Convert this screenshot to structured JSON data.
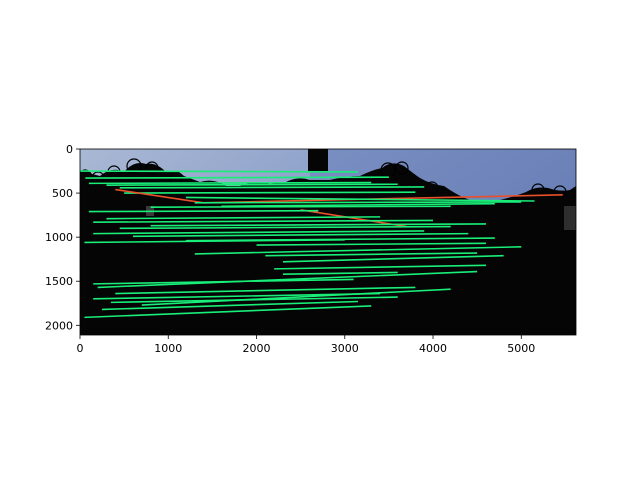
{
  "chart_data": {
    "type": "image",
    "title": "",
    "xlabel": "",
    "ylabel": "",
    "xlim": [
      0,
      5620
    ],
    "ylim": [
      2110,
      0
    ],
    "x_ticks": [
      {
        "value": 0,
        "label": "0"
      },
      {
        "value": 1000,
        "label": "1000"
      },
      {
        "value": 2000,
        "label": "2000"
      },
      {
        "value": 3000,
        "label": "3000"
      },
      {
        "value": 4000,
        "label": "4000"
      },
      {
        "value": 5000,
        "label": "5000"
      }
    ],
    "y_ticks": [
      {
        "value": 0,
        "label": "0"
      },
      {
        "value": 500,
        "label": "500"
      },
      {
        "value": 1000,
        "label": "1000"
      },
      {
        "value": 1500,
        "label": "1500"
      },
      {
        "value": 2000,
        "label": "2000"
      }
    ],
    "image_split_x": 2610,
    "colors": {
      "inlier": "#19ee78",
      "outlier": "#e8502a",
      "sky_left": "#9aaccc",
      "sky_right": "#6d82b8",
      "ground": "#050505"
    },
    "match_lines": [
      {
        "x1": 0,
        "y1": 250,
        "x2": 3150,
        "y2": 260,
        "status": "inlier"
      },
      {
        "x1": 60,
        "y1": 330,
        "x2": 3500,
        "y2": 320,
        "status": "inlier"
      },
      {
        "x1": 100,
        "y1": 390,
        "x2": 3300,
        "y2": 380,
        "status": "inlier"
      },
      {
        "x1": 300,
        "y1": 410,
        "x2": 3600,
        "y2": 400,
        "status": "inlier"
      },
      {
        "x1": 450,
        "y1": 440,
        "x2": 3900,
        "y2": 430,
        "status": "inlier"
      },
      {
        "x1": 500,
        "y1": 500,
        "x2": 3800,
        "y2": 490,
        "status": "inlier"
      },
      {
        "x1": 400,
        "y1": 460,
        "x2": 1400,
        "y2": 610,
        "status": "outlier"
      },
      {
        "x1": 1400,
        "y1": 610,
        "x2": 5470,
        "y2": 520,
        "status": "outlier"
      },
      {
        "x1": 1200,
        "y1": 550,
        "x2": 5150,
        "y2": 590,
        "status": "inlier"
      },
      {
        "x1": 1300,
        "y1": 610,
        "x2": 5000,
        "y2": 600,
        "status": "inlier"
      },
      {
        "x1": 1600,
        "y1": 650,
        "x2": 4700,
        "y2": 620,
        "status": "inlier"
      },
      {
        "x1": 800,
        "y1": 660,
        "x2": 4200,
        "y2": 650,
        "status": "inlier"
      },
      {
        "x1": 2500,
        "y1": 690,
        "x2": 3700,
        "y2": 880,
        "status": "outlier"
      },
      {
        "x1": 100,
        "y1": 710,
        "x2": 2700,
        "y2": 700,
        "status": "inlier"
      },
      {
        "x1": 300,
        "y1": 790,
        "x2": 3400,
        "y2": 770,
        "status": "inlier"
      },
      {
        "x1": 150,
        "y1": 830,
        "x2": 4000,
        "y2": 810,
        "status": "inlier"
      },
      {
        "x1": 800,
        "y1": 870,
        "x2": 4600,
        "y2": 850,
        "status": "inlier"
      },
      {
        "x1": 450,
        "y1": 900,
        "x2": 4200,
        "y2": 880,
        "status": "inlier"
      },
      {
        "x1": 150,
        "y1": 960,
        "x2": 3900,
        "y2": 930,
        "status": "inlier"
      },
      {
        "x1": 600,
        "y1": 990,
        "x2": 4400,
        "y2": 960,
        "status": "inlier"
      },
      {
        "x1": 50,
        "y1": 1060,
        "x2": 3000,
        "y2": 1030,
        "status": "inlier"
      },
      {
        "x1": 1200,
        "y1": 1040,
        "x2": 4700,
        "y2": 1010,
        "status": "inlier"
      },
      {
        "x1": 2000,
        "y1": 1090,
        "x2": 4600,
        "y2": 1070,
        "status": "inlier"
      },
      {
        "x1": 1300,
        "y1": 1190,
        "x2": 5000,
        "y2": 1110,
        "status": "inlier"
      },
      {
        "x1": 2100,
        "y1": 1210,
        "x2": 4500,
        "y2": 1180,
        "status": "inlier"
      },
      {
        "x1": 2300,
        "y1": 1280,
        "x2": 4800,
        "y2": 1210,
        "status": "inlier"
      },
      {
        "x1": 2200,
        "y1": 1360,
        "x2": 4600,
        "y2": 1320,
        "status": "inlier"
      },
      {
        "x1": 2300,
        "y1": 1420,
        "x2": 3600,
        "y2": 1400,
        "status": "inlier"
      },
      {
        "x1": 150,
        "y1": 1530,
        "x2": 3100,
        "y2": 1480,
        "status": "inlier"
      },
      {
        "x1": 200,
        "y1": 1570,
        "x2": 4500,
        "y2": 1390,
        "status": "inlier"
      },
      {
        "x1": 400,
        "y1": 1640,
        "x2": 3800,
        "y2": 1570,
        "status": "inlier"
      },
      {
        "x1": 150,
        "y1": 1700,
        "x2": 3400,
        "y2": 1640,
        "status": "inlier"
      },
      {
        "x1": 350,
        "y1": 1740,
        "x2": 3600,
        "y2": 1680,
        "status": "inlier"
      },
      {
        "x1": 700,
        "y1": 1770,
        "x2": 4200,
        "y2": 1590,
        "status": "inlier"
      },
      {
        "x1": 250,
        "y1": 1820,
        "x2": 3150,
        "y2": 1730,
        "status": "inlier"
      },
      {
        "x1": 50,
        "y1": 1910,
        "x2": 3300,
        "y2": 1780,
        "status": "inlier"
      }
    ]
  }
}
